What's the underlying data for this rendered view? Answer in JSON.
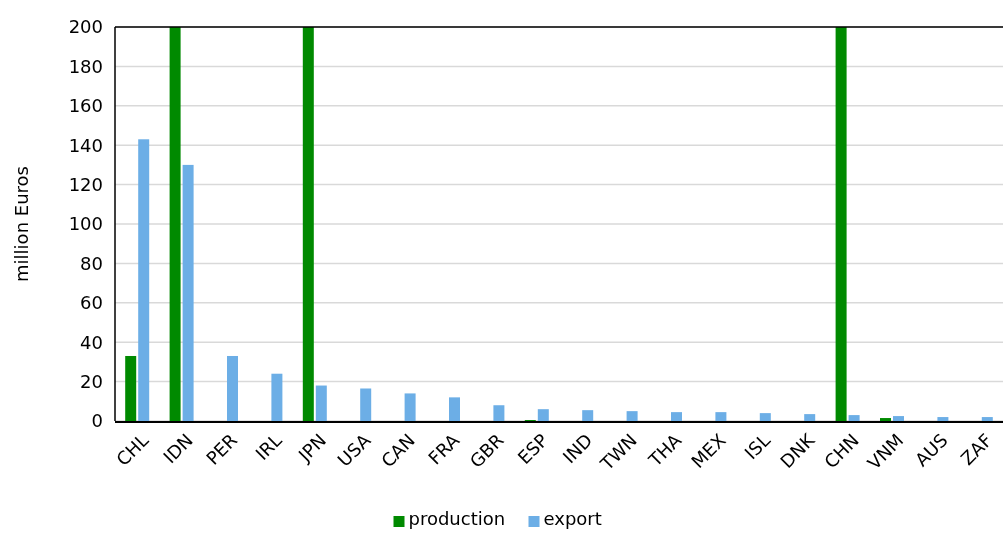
{
  "chart_data": {
    "type": "bar",
    "ylabel": "million Euros",
    "categories": [
      "CHL",
      "IDN",
      "PER",
      "IRL",
      "JPN",
      "USA",
      "CAN",
      "FRA",
      "GBR",
      "ESP",
      "IND",
      "TWN",
      "THA",
      "MEX",
      "ISL",
      "DNK",
      "CHN",
      "VNM",
      "AUS",
      "ZAF"
    ],
    "series": [
      {
        "name": "production",
        "color": "#008a00",
        "values": [
          33,
          200,
          null,
          null,
          200,
          null,
          null,
          null,
          null,
          0.5,
          null,
          null,
          null,
          null,
          null,
          null,
          200,
          1.5,
          null,
          null
        ]
      },
      {
        "name": "export",
        "color": "#6caee6",
        "values": [
          143,
          130,
          33,
          24,
          18,
          16.5,
          14,
          12,
          8,
          6,
          5.5,
          5,
          4.5,
          4.5,
          4,
          3.5,
          3,
          2.5,
          2,
          2
        ]
      }
    ],
    "ylim": [
      0,
      200
    ],
    "yticks": [
      0,
      20,
      40,
      60,
      80,
      100,
      120,
      140,
      160,
      180,
      200
    ],
    "grid": "y",
    "legend": "bottom"
  }
}
